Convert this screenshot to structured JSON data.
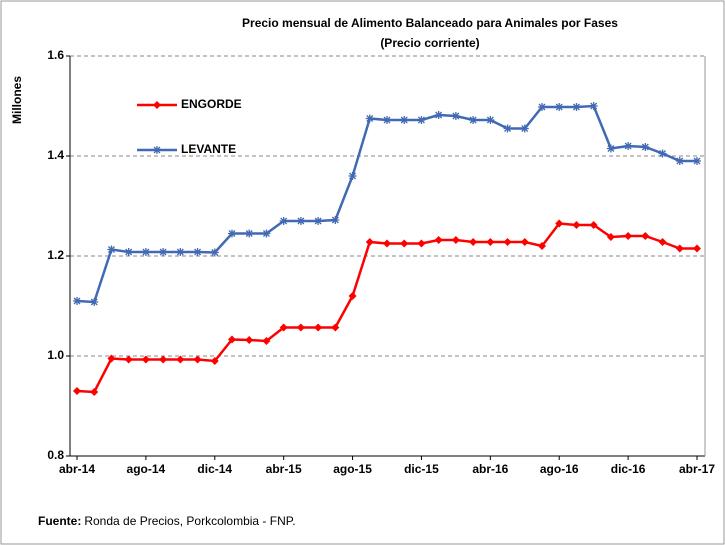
{
  "chart_data": {
    "type": "line",
    "title": "Precio mensual de Alimento Balanceado para Animales por Fases",
    "subtitle": "(Precio corriente)",
    "y_label": "Millones",
    "categories": [
      "abr-14",
      null,
      null,
      null,
      "ago-14",
      null,
      null,
      null,
      "dic-14",
      null,
      null,
      null,
      "abr-15",
      null,
      null,
      null,
      "ago-15",
      null,
      null,
      null,
      "dic-15",
      null,
      null,
      null,
      "abr-16",
      null,
      null,
      null,
      "ago-16",
      null,
      null,
      null,
      "dic-16",
      null,
      null,
      null,
      "abr-17"
    ],
    "series": [
      {
        "name": "ENGORDE",
        "color": "#ff0000",
        "values": [
          0.93,
          0.928,
          0.995,
          0.993,
          0.993,
          0.993,
          0.993,
          0.993,
          0.99,
          1.033,
          1.032,
          1.03,
          1.057,
          1.057,
          1.057,
          1.057,
          1.12,
          1.228,
          1.225,
          1.225,
          1.225,
          1.232,
          1.232,
          1.228,
          1.228,
          1.228,
          1.228,
          1.22,
          1.265,
          1.262,
          1.262,
          1.238,
          1.24,
          1.24,
          1.228,
          1.215,
          1.215
        ]
      },
      {
        "name": "LEVANTE",
        "color": "#4169b4",
        "values": [
          1.11,
          1.108,
          1.213,
          1.208,
          1.208,
          1.208,
          1.208,
          1.208,
          1.207,
          1.245,
          1.245,
          1.245,
          1.27,
          1.27,
          1.27,
          1.272,
          1.36,
          1.475,
          1.472,
          1.472,
          1.472,
          1.482,
          1.48,
          1.472,
          1.472,
          1.455,
          1.455,
          1.498,
          1.498,
          1.498,
          1.5,
          1.415,
          1.42,
          1.418,
          1.405,
          1.39,
          1.39
        ]
      }
    ],
    "ylim": [
      0.8,
      1.6
    ],
    "yticks": [
      0.8,
      {
        "value": 1,
        "label": "1.0"
      },
      1.2,
      1.4,
      1.6
    ],
    "grid": true
  },
  "footer": {
    "label": "Fuente:",
    "text": "Ronda de Precios, Porkcolombia - FNP."
  }
}
